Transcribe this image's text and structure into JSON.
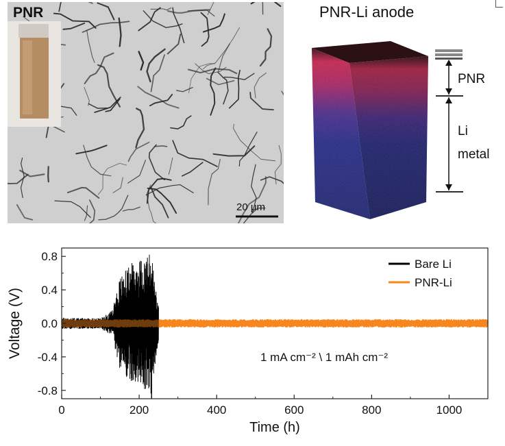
{
  "top_left": {
    "label": "PNR",
    "scale_bar": "20 μm"
  },
  "top_right": {
    "title": "PNR-Li anode",
    "layer_top": "PNR",
    "layer_bottom_line1": "Li",
    "layer_bottom_line2": "metal"
  },
  "chart_data": {
    "type": "line",
    "xlabel": "Time (h)",
    "ylabel": "Voltage (V)",
    "xlim": [
      0,
      1100
    ],
    "ylim": [
      -0.9,
      0.9
    ],
    "x_ticks": [
      0,
      200,
      400,
      600,
      800,
      1000
    ],
    "y_ticks": [
      -0.8,
      -0.4,
      0.0,
      0.4,
      0.8
    ],
    "y_tick_labels": [
      "-0.8",
      "-0.4",
      "0.0",
      "0.4",
      "0.8"
    ],
    "annotation": "1 mA cm⁻² \\ 1 mAh cm⁻²",
    "legend_position": "top-right",
    "series": [
      {
        "name": "Bare Li",
        "color": "#000000",
        "x_range": [
          0,
          250
        ],
        "amplitude_envelope": [
          {
            "x": 0,
            "amp": 0.07
          },
          {
            "x": 100,
            "amp": 0.06
          },
          {
            "x": 130,
            "amp": 0.15
          },
          {
            "x": 150,
            "amp": 0.55
          },
          {
            "x": 180,
            "amp": 0.72
          },
          {
            "x": 215,
            "amp": 0.8
          },
          {
            "x": 232,
            "amp": 0.85
          },
          {
            "x": 245,
            "amp": 0.35
          },
          {
            "x": 250,
            "amp": 0.2
          }
        ]
      },
      {
        "name": "PNR-Li",
        "color": "#f7861e",
        "x_range": [
          0,
          1100
        ],
        "amplitude_envelope": [
          {
            "x": 0,
            "amp": 0.05
          },
          {
            "x": 1100,
            "amp": 0.05
          }
        ]
      }
    ]
  }
}
